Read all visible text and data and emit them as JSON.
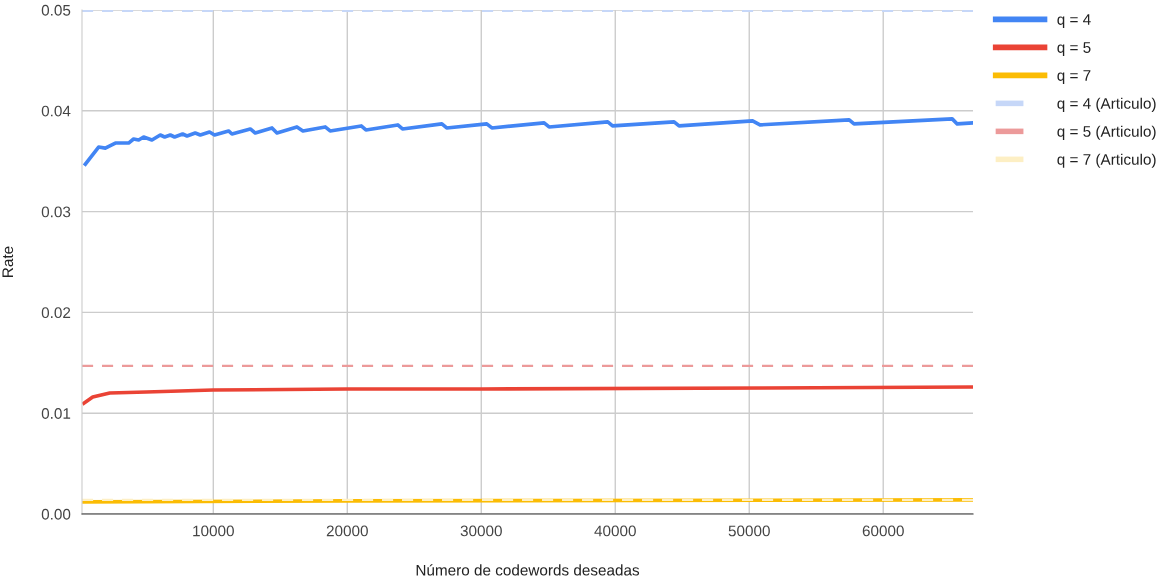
{
  "chart_data": {
    "type": "line",
    "xlabel": "Número de codewords deseadas",
    "ylabel": "Rate",
    "xlim": [
      200,
      66700
    ],
    "xticks": [
      10000,
      20000,
      30000,
      40000,
      50000,
      60000
    ],
    "ylim": [
      0,
      0.05
    ],
    "yticks": [
      {
        "value": 0,
        "label": "0.00"
      },
      {
        "value": 0.01,
        "label": "0.01"
      },
      {
        "value": 0.02,
        "label": "0.02"
      },
      {
        "value": 0.03,
        "label": "0.03"
      },
      {
        "value": 0.04,
        "label": "0.04"
      },
      {
        "value": 0.05,
        "label": "0.05"
      }
    ],
    "grid": true,
    "legend": "top right",
    "marker": "none",
    "series": [
      {
        "name": "q = 4",
        "color": "#4285f4",
        "line_style": "solid",
        "x": [
          450,
          1440,
          1940,
          2690,
          3680,
          4050,
          4430,
          4800,
          5420,
          6040,
          6370,
          6790,
          7110,
          7710,
          8040,
          8650,
          9030,
          9720,
          10090,
          11140,
          11390,
          12760,
          13130,
          14380,
          14750,
          16240,
          16690,
          18350,
          18720,
          21040,
          21390,
          23770,
          24120,
          27060,
          27420,
          30410,
          30790,
          34690,
          35060,
          39440,
          39800,
          44390,
          44760,
          50250,
          50800,
          57460,
          57820,
          65150,
          65520,
          66700
        ],
        "values": [
          0.0347,
          0.0364,
          0.0363,
          0.0368,
          0.0368,
          0.0372,
          0.0371,
          0.0374,
          0.0371,
          0.0376,
          0.0374,
          0.0376,
          0.0374,
          0.0377,
          0.0375,
          0.0378,
          0.0376,
          0.0379,
          0.0376,
          0.038,
          0.0377,
          0.0382,
          0.0378,
          0.0383,
          0.0378,
          0.0384,
          0.038,
          0.0384,
          0.038,
          0.0385,
          0.0381,
          0.0386,
          0.0382,
          0.0387,
          0.0383,
          0.0387,
          0.0383,
          0.0388,
          0.0384,
          0.0389,
          0.0385,
          0.0389,
          0.0385,
          0.039,
          0.0386,
          0.0391,
          0.0387,
          0.0392,
          0.0387,
          0.0388
        ]
      },
      {
        "name": "q = 5",
        "color": "#ea4335",
        "line_style": "solid",
        "x": [
          340,
          1000,
          2270,
          5000,
          9980,
          20000,
          30100,
          51100,
          66700
        ],
        "values": [
          0.011,
          0.0116,
          0.012,
          0.0121,
          0.0123,
          0.0124,
          0.0124,
          0.0125,
          0.0126
        ]
      },
      {
        "name": "q = 7",
        "color": "#fbbc04",
        "line_style": "solid",
        "x": [
          340,
          20000,
          66700
        ],
        "values": [
          0.0012,
          0.0013,
          0.0014
        ]
      },
      {
        "name": "q = 4 (Articulo)",
        "color": "#c6d7f8",
        "line_style": "dashed",
        "x": [
          200,
          66700
        ],
        "values": [
          0.0499,
          0.0499
        ]
      },
      {
        "name": "q = 5 (Articulo)",
        "color": "#ec9a9a",
        "line_style": "dashed",
        "x": [
          200,
          66700
        ],
        "values": [
          0.0147,
          0.0147
        ]
      },
      {
        "name": "q = 7 (Articulo)",
        "color": "#fdefc4",
        "line_style": "dashed",
        "x": [
          200,
          66700
        ],
        "values": [
          0.0014,
          0.0014
        ]
      }
    ]
  }
}
